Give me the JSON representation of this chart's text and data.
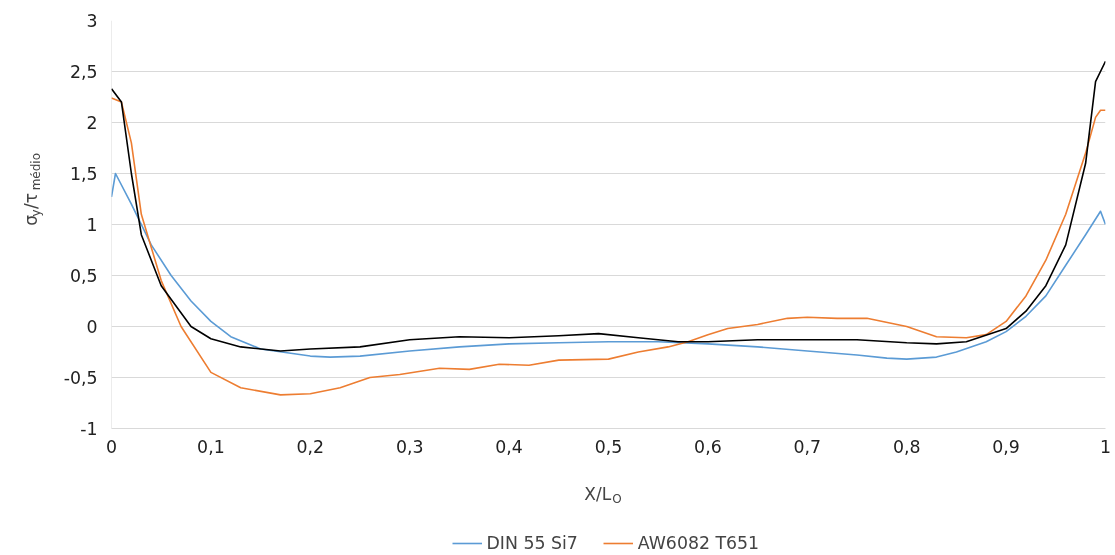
{
  "chart_data": {
    "type": "line",
    "xlabel": "X/L$_{O}$",
    "ylabel": "σ$_{y}$/τ$_{médio}$",
    "xlim": [
      0,
      1
    ],
    "ylim": [
      -1,
      3
    ],
    "xticks": [
      0,
      {
        "value": 0.1,
        "label": "0,1"
      },
      {
        "value": 0.2,
        "label": "0,2"
      },
      {
        "value": 0.3,
        "label": "0,3"
      },
      {
        "value": 0.4,
        "label": "0,4"
      },
      {
        "value": 0.5,
        "label": "0,5"
      },
      {
        "value": 0.6,
        "label": "0,6"
      },
      {
        "value": 0.7,
        "label": "0,7"
      },
      {
        "value": 0.8,
        "label": "0,8"
      },
      {
        "value": 0.9,
        "label": "0,9"
      },
      1
    ],
    "yticks": [
      -1,
      {
        "value": -0.5,
        "label": "-0,5"
      },
      0,
      {
        "value": 0.5,
        "label": "0,5"
      },
      1,
      {
        "value": 1.5,
        "label": "1,5"
      },
      2,
      {
        "value": 2.5,
        "label": "2,5"
      },
      3
    ],
    "grid": "y",
    "legend": "bottom",
    "marker": "none",
    "line_style": "solid",
    "series": [
      {
        "name": "DIN 55 Si7",
        "color": "#5b9bd5",
        "x": [
          0,
          0.004,
          0.02,
          0.04,
          0.06,
          0.08,
          0.1,
          0.12,
          0.15,
          0.2,
          0.22,
          0.25,
          0.3,
          0.35,
          0.4,
          0.45,
          0.5,
          0.55,
          0.6,
          0.65,
          0.7,
          0.75,
          0.78,
          0.8,
          0.83,
          0.85,
          0.88,
          0.9,
          0.92,
          0.94,
          0.96,
          0.98,
          0.995,
          1
        ],
        "values": [
          1.27,
          1.5,
          1.2,
          0.8,
          0.5,
          0.25,
          0.05,
          -0.1,
          -0.22,
          -0.29,
          -0.3,
          -0.29,
          -0.24,
          -0.2,
          -0.17,
          -0.16,
          -0.15,
          -0.15,
          -0.17,
          -0.2,
          -0.24,
          -0.28,
          -0.31,
          -0.32,
          -0.3,
          -0.25,
          -0.15,
          -0.05,
          0.1,
          0.3,
          0.6,
          0.9,
          1.13,
          1.0
        ]
      },
      {
        "name": "AW6082 T651",
        "color": "#ed7d31",
        "x": [
          0,
          0.01,
          0.02,
          0.03,
          0.05,
          0.07,
          0.1,
          0.13,
          0.17,
          0.2,
          0.23,
          0.26,
          0.29,
          0.33,
          0.36,
          0.39,
          0.42,
          0.45,
          0.5,
          0.53,
          0.56,
          0.58,
          0.6,
          0.62,
          0.65,
          0.68,
          0.7,
          0.73,
          0.76,
          0.8,
          0.83,
          0.86,
          0.88,
          0.9,
          0.92,
          0.94,
          0.96,
          0.98,
          0.99,
          0.995,
          1
        ],
        "values": [
          2.24,
          2.2,
          1.8,
          1.1,
          0.45,
          0.0,
          -0.45,
          -0.6,
          -0.67,
          -0.66,
          -0.6,
          -0.5,
          -0.47,
          -0.41,
          -0.42,
          -0.37,
          -0.38,
          -0.33,
          -0.32,
          -0.25,
          -0.2,
          -0.15,
          -0.08,
          -0.02,
          0.02,
          0.08,
          0.09,
          0.08,
          0.08,
          0.0,
          -0.1,
          -0.11,
          -0.08,
          0.05,
          0.3,
          0.65,
          1.1,
          1.7,
          2.05,
          2.12,
          2.12
        ]
      },
      {
        "color": "#000000",
        "x": [
          0,
          0.01,
          0.02,
          0.03,
          0.05,
          0.08,
          0.1,
          0.13,
          0.17,
          0.2,
          0.25,
          0.3,
          0.35,
          0.4,
          0.45,
          0.49,
          0.53,
          0.57,
          0.6,
          0.65,
          0.7,
          0.75,
          0.8,
          0.83,
          0.86,
          0.9,
          0.92,
          0.94,
          0.96,
          0.98,
          0.99,
          1
        ],
        "values": [
          2.33,
          2.2,
          1.5,
          0.9,
          0.4,
          0.0,
          -0.12,
          -0.2,
          -0.24,
          -0.22,
          -0.2,
          -0.13,
          -0.1,
          -0.11,
          -0.09,
          -0.07,
          -0.11,
          -0.15,
          -0.15,
          -0.13,
          -0.13,
          -0.13,
          -0.16,
          -0.17,
          -0.15,
          -0.02,
          0.15,
          0.4,
          0.8,
          1.6,
          2.4,
          2.6
        ]
      }
    ]
  }
}
